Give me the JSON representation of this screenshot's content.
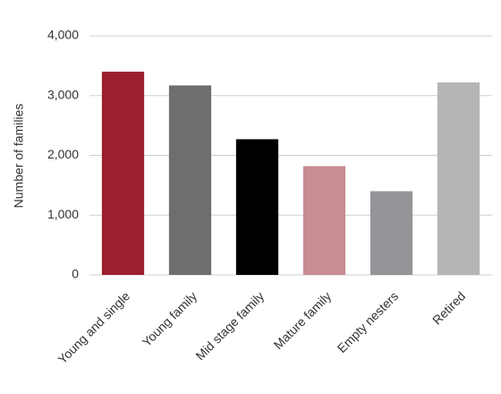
{
  "chart_data": {
    "type": "bar",
    "y_label": "Number of families",
    "categories": [
      "Young and single",
      "Young family",
      "Mid stage family",
      "Mature family",
      "Empty nesters",
      "Retired"
    ],
    "values": [
      3400,
      3170,
      2270,
      1820,
      1400,
      3220
    ],
    "colors": [
      "#9b1f2e",
      "#6d6e70",
      "#000000",
      "#c98c92",
      "#939598",
      "#b5b5b6"
    ],
    "ylim": [
      0,
      4000
    ],
    "yticks": [
      0,
      {
        "value": 1000,
        "label": "1,000"
      },
      {
        "value": 2000,
        "label": "2,000"
      },
      {
        "value": 3000,
        "label": "3,000"
      },
      {
        "value": 4000,
        "label": "4,000"
      }
    ],
    "grid": true
  }
}
